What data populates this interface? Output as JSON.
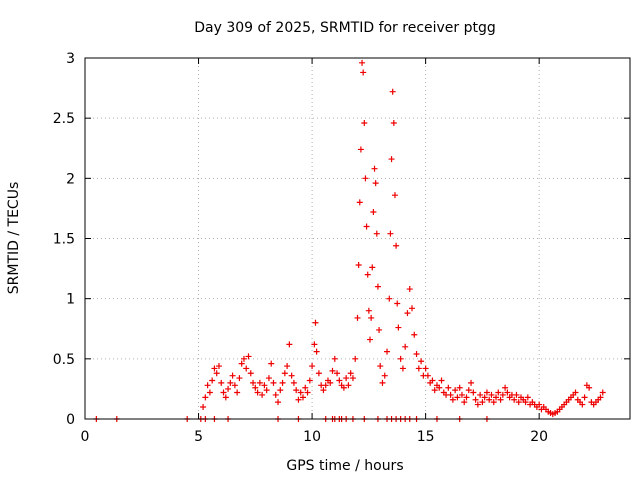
{
  "chart_data": {
    "type": "scatter",
    "title": "Day 309 of 2025, SRMTID for receiver ptgg",
    "xlabel": "GPS time / hours",
    "ylabel": "SRMTID / TECUs",
    "xlim": [
      0,
      24
    ],
    "ylim": [
      0,
      3
    ],
    "xticks": [
      0,
      5,
      10,
      15,
      20
    ],
    "yticks": [
      0,
      0.5,
      1,
      1.5,
      2,
      2.5,
      3
    ],
    "xtick_labels": [
      "0",
      "5",
      "10",
      "15",
      "20"
    ],
    "ytick_labels": [
      "0",
      "0.5",
      "1",
      "1.5",
      "2",
      "2.5",
      "3"
    ],
    "grid": true,
    "marker": "+",
    "color": "#ee0000",
    "series": [
      {
        "name": "SRMTID",
        "points": [
          [
            0.5,
            0
          ],
          [
            1.4,
            0
          ],
          [
            4.5,
            0
          ],
          [
            5.1,
            0
          ],
          [
            5.3,
            0
          ],
          [
            5.7,
            0
          ],
          [
            6.3,
            0
          ],
          [
            8.5,
            0
          ],
          [
            9.4,
            0
          ],
          [
            10.6,
            0
          ],
          [
            10.9,
            0
          ],
          [
            11.0,
            0
          ],
          [
            11.2,
            0
          ],
          [
            11.3,
            0
          ],
          [
            11.5,
            0
          ],
          [
            11.8,
            0
          ],
          [
            12.3,
            0
          ],
          [
            12.9,
            0
          ],
          [
            13.3,
            0
          ],
          [
            13.5,
            0
          ],
          [
            13.7,
            0
          ],
          [
            13.9,
            0
          ],
          [
            14.1,
            0
          ],
          [
            14.3,
            0
          ],
          [
            14.6,
            0
          ],
          [
            15.5,
            0
          ],
          [
            16.5,
            0
          ],
          [
            17.7,
            0
          ],
          [
            5.2,
            0.1
          ],
          [
            5.3,
            0.18
          ],
          [
            5.4,
            0.28
          ],
          [
            5.5,
            0.22
          ],
          [
            5.6,
            0.32
          ],
          [
            5.7,
            0.42
          ],
          [
            5.8,
            0.38
          ],
          [
            5.9,
            0.44
          ],
          [
            6.0,
            0.3
          ],
          [
            6.1,
            0.22
          ],
          [
            6.2,
            0.18
          ],
          [
            6.3,
            0.25
          ],
          [
            6.4,
            0.3
          ],
          [
            6.5,
            0.36
          ],
          [
            6.6,
            0.28
          ],
          [
            6.7,
            0.22
          ],
          [
            6.8,
            0.34
          ],
          [
            6.9,
            0.46
          ],
          [
            7.0,
            0.5
          ],
          [
            7.1,
            0.42
          ],
          [
            7.2,
            0.52
          ],
          [
            7.3,
            0.38
          ],
          [
            7.4,
            0.3
          ],
          [
            7.5,
            0.26
          ],
          [
            7.6,
            0.22
          ],
          [
            7.7,
            0.3
          ],
          [
            7.8,
            0.2
          ],
          [
            7.9,
            0.28
          ],
          [
            8.0,
            0.24
          ],
          [
            8.1,
            0.34
          ],
          [
            8.2,
            0.46
          ],
          [
            8.3,
            0.3
          ],
          [
            8.4,
            0.2
          ],
          [
            8.5,
            0.14
          ],
          [
            8.6,
            0.24
          ],
          [
            8.7,
            0.3
          ],
          [
            8.8,
            0.38
          ],
          [
            8.9,
            0.44
          ],
          [
            9.0,
            0.62
          ],
          [
            9.1,
            0.36
          ],
          [
            9.2,
            0.3
          ],
          [
            9.3,
            0.24
          ],
          [
            9.4,
            0.16
          ],
          [
            9.5,
            0.22
          ],
          [
            9.6,
            0.18
          ],
          [
            9.7,
            0.26
          ],
          [
            9.8,
            0.22
          ],
          [
            9.9,
            0.32
          ],
          [
            10.0,
            0.44
          ],
          [
            10.1,
            0.62
          ],
          [
            10.15,
            0.8
          ],
          [
            10.2,
            0.56
          ],
          [
            10.3,
            0.38
          ],
          [
            10.4,
            0.28
          ],
          [
            10.5,
            0.24
          ],
          [
            10.6,
            0.28
          ],
          [
            10.7,
            0.32
          ],
          [
            10.8,
            0.3
          ],
          [
            10.9,
            0.4
          ],
          [
            11.0,
            0.5
          ],
          [
            11.1,
            0.38
          ],
          [
            11.2,
            0.32
          ],
          [
            11.3,
            0.28
          ],
          [
            11.4,
            0.26
          ],
          [
            11.5,
            0.34
          ],
          [
            11.6,
            0.28
          ],
          [
            11.7,
            0.38
          ],
          [
            11.8,
            0.34
          ],
          [
            11.9,
            0.5
          ],
          [
            12.0,
            0.84
          ],
          [
            12.05,
            1.28
          ],
          [
            12.1,
            1.8
          ],
          [
            12.15,
            2.24
          ],
          [
            12.2,
            2.96
          ],
          [
            12.25,
            2.88
          ],
          [
            12.3,
            2.46
          ],
          [
            12.35,
            2.0
          ],
          [
            12.4,
            1.6
          ],
          [
            12.45,
            1.2
          ],
          [
            12.5,
            0.9
          ],
          [
            12.55,
            0.66
          ],
          [
            12.6,
            0.84
          ],
          [
            12.65,
            1.26
          ],
          [
            12.7,
            1.72
          ],
          [
            12.75,
            2.08
          ],
          [
            12.8,
            1.96
          ],
          [
            12.85,
            1.54
          ],
          [
            12.9,
            1.1
          ],
          [
            12.95,
            0.74
          ],
          [
            13.0,
            0.44
          ],
          [
            13.1,
            0.3
          ],
          [
            13.2,
            0.36
          ],
          [
            13.3,
            0.56
          ],
          [
            13.4,
            1.0
          ],
          [
            13.45,
            1.54
          ],
          [
            13.5,
            2.16
          ],
          [
            13.55,
            2.72
          ],
          [
            13.6,
            2.46
          ],
          [
            13.65,
            1.86
          ],
          [
            13.7,
            1.44
          ],
          [
            13.75,
            0.96
          ],
          [
            13.8,
            0.76
          ],
          [
            13.9,
            0.5
          ],
          [
            14.0,
            0.42
          ],
          [
            14.1,
            0.6
          ],
          [
            14.2,
            0.88
          ],
          [
            14.3,
            1.08
          ],
          [
            14.4,
            0.92
          ],
          [
            14.5,
            0.7
          ],
          [
            14.6,
            0.54
          ],
          [
            14.7,
            0.42
          ],
          [
            14.8,
            0.48
          ],
          [
            14.9,
            0.36
          ],
          [
            15.0,
            0.42
          ],
          [
            15.1,
            0.36
          ],
          [
            15.2,
            0.3
          ],
          [
            15.3,
            0.32
          ],
          [
            15.4,
            0.24
          ],
          [
            15.5,
            0.28
          ],
          [
            15.6,
            0.26
          ],
          [
            15.7,
            0.32
          ],
          [
            15.8,
            0.22
          ],
          [
            15.9,
            0.2
          ],
          [
            16.0,
            0.26
          ],
          [
            16.1,
            0.2
          ],
          [
            16.2,
            0.16
          ],
          [
            16.3,
            0.24
          ],
          [
            16.4,
            0.18
          ],
          [
            16.5,
            0.26
          ],
          [
            16.6,
            0.2
          ],
          [
            16.7,
            0.14
          ],
          [
            16.8,
            0.18
          ],
          [
            16.9,
            0.24
          ],
          [
            17.0,
            0.3
          ],
          [
            17.1,
            0.22
          ],
          [
            17.2,
            0.16
          ],
          [
            17.3,
            0.12
          ],
          [
            17.4,
            0.2
          ],
          [
            17.5,
            0.14
          ],
          [
            17.6,
            0.18
          ],
          [
            17.7,
            0.22
          ],
          [
            17.8,
            0.16
          ],
          [
            17.9,
            0.2
          ],
          [
            18.0,
            0.14
          ],
          [
            18.1,
            0.18
          ],
          [
            18.2,
            0.22
          ],
          [
            18.3,
            0.16
          ],
          [
            18.4,
            0.2
          ],
          [
            18.5,
            0.26
          ],
          [
            18.6,
            0.22
          ],
          [
            18.7,
            0.18
          ],
          [
            18.8,
            0.2
          ],
          [
            18.9,
            0.16
          ],
          [
            19.0,
            0.2
          ],
          [
            19.1,
            0.14
          ],
          [
            19.2,
            0.18
          ],
          [
            19.3,
            0.16
          ],
          [
            19.4,
            0.14
          ],
          [
            19.5,
            0.18
          ],
          [
            19.6,
            0.12
          ],
          [
            19.7,
            0.14
          ],
          [
            19.8,
            0.12
          ],
          [
            19.9,
            0.1
          ],
          [
            20.0,
            0.12
          ],
          [
            20.1,
            0.08
          ],
          [
            20.2,
            0.1
          ],
          [
            20.3,
            0.08
          ],
          [
            20.4,
            0.06
          ],
          [
            20.5,
            0.05
          ],
          [
            20.6,
            0.04
          ],
          [
            20.7,
            0.05
          ],
          [
            20.8,
            0.06
          ],
          [
            20.9,
            0.08
          ],
          [
            21.0,
            0.1
          ],
          [
            21.1,
            0.12
          ],
          [
            21.2,
            0.14
          ],
          [
            21.3,
            0.16
          ],
          [
            21.4,
            0.18
          ],
          [
            21.5,
            0.2
          ],
          [
            21.6,
            0.22
          ],
          [
            21.7,
            0.16
          ],
          [
            21.8,
            0.14
          ],
          [
            21.9,
            0.12
          ],
          [
            22.0,
            0.18
          ],
          [
            22.1,
            0.28
          ],
          [
            22.2,
            0.26
          ],
          [
            22.3,
            0.14
          ],
          [
            22.4,
            0.12
          ],
          [
            22.5,
            0.14
          ],
          [
            22.6,
            0.16
          ],
          [
            22.7,
            0.18
          ],
          [
            22.8,
            0.22
          ]
        ]
      }
    ]
  }
}
